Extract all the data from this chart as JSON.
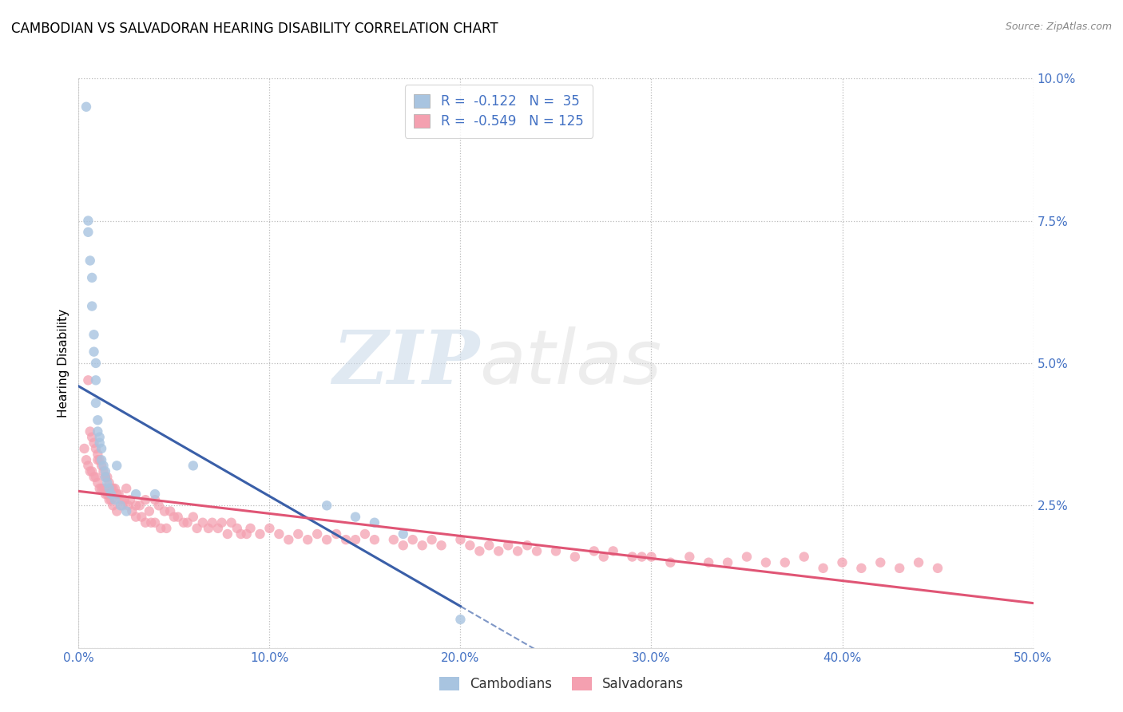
{
  "title": "CAMBODIAN VS SALVADORAN HEARING DISABILITY CORRELATION CHART",
  "source": "Source: ZipAtlas.com",
  "ylabel": "Hearing Disability",
  "xlabel": "",
  "xlim": [
    0.0,
    0.5
  ],
  "ylim": [
    0.0,
    0.1
  ],
  "xticks": [
    0.0,
    0.1,
    0.2,
    0.3,
    0.4,
    0.5
  ],
  "yticks": [
    0.0,
    0.025,
    0.05,
    0.075,
    0.1
  ],
  "xtick_labels": [
    "0.0%",
    "10.0%",
    "20.0%",
    "30.0%",
    "40.0%",
    "50.0%"
  ],
  "ytick_labels": [
    "",
    "2.5%",
    "5.0%",
    "7.5%",
    "10.0%"
  ],
  "cambodian_color": "#a8c4e0",
  "salvadoran_color": "#f4a0b0",
  "cambodian_line_color": "#3a5fa8",
  "salvadoran_line_color": "#e05575",
  "cambodian_R": "-0.122",
  "cambodian_N": "35",
  "salvadoran_R": "-0.549",
  "salvadoran_N": "125",
  "watermark_zip": "ZIP",
  "watermark_atlas": "atlas",
  "background_color": "#ffffff",
  "grid_color": "#bbbbbb",
  "legend_text_color": "#4472c4",
  "cambodian_x": [
    0.004,
    0.005,
    0.005,
    0.006,
    0.007,
    0.007,
    0.008,
    0.008,
    0.009,
    0.009,
    0.009,
    0.01,
    0.01,
    0.011,
    0.011,
    0.012,
    0.012,
    0.013,
    0.014,
    0.014,
    0.015,
    0.016,
    0.017,
    0.019,
    0.02,
    0.022,
    0.025,
    0.03,
    0.04,
    0.06,
    0.13,
    0.145,
    0.155,
    0.17,
    0.2
  ],
  "cambodian_y": [
    0.095,
    0.075,
    0.073,
    0.068,
    0.065,
    0.06,
    0.055,
    0.052,
    0.05,
    0.047,
    0.043,
    0.04,
    0.038,
    0.037,
    0.036,
    0.035,
    0.033,
    0.032,
    0.031,
    0.03,
    0.029,
    0.028,
    0.027,
    0.026,
    0.032,
    0.025,
    0.024,
    0.027,
    0.027,
    0.032,
    0.025,
    0.023,
    0.022,
    0.02,
    0.005
  ],
  "salvadoran_x": [
    0.003,
    0.004,
    0.005,
    0.005,
    0.006,
    0.006,
    0.007,
    0.007,
    0.008,
    0.008,
    0.009,
    0.009,
    0.01,
    0.01,
    0.01,
    0.011,
    0.011,
    0.012,
    0.012,
    0.013,
    0.013,
    0.014,
    0.014,
    0.015,
    0.015,
    0.016,
    0.016,
    0.017,
    0.017,
    0.018,
    0.018,
    0.019,
    0.02,
    0.02,
    0.021,
    0.022,
    0.023,
    0.024,
    0.025,
    0.026,
    0.027,
    0.028,
    0.03,
    0.03,
    0.032,
    0.033,
    0.035,
    0.035,
    0.037,
    0.038,
    0.04,
    0.04,
    0.042,
    0.043,
    0.045,
    0.046,
    0.048,
    0.05,
    0.052,
    0.055,
    0.057,
    0.06,
    0.062,
    0.065,
    0.068,
    0.07,
    0.073,
    0.075,
    0.078,
    0.08,
    0.083,
    0.085,
    0.088,
    0.09,
    0.095,
    0.1,
    0.105,
    0.11,
    0.115,
    0.12,
    0.125,
    0.13,
    0.135,
    0.14,
    0.145,
    0.15,
    0.155,
    0.165,
    0.17,
    0.175,
    0.18,
    0.185,
    0.19,
    0.2,
    0.205,
    0.21,
    0.215,
    0.22,
    0.225,
    0.23,
    0.235,
    0.24,
    0.25,
    0.26,
    0.27,
    0.275,
    0.28,
    0.29,
    0.295,
    0.3,
    0.31,
    0.32,
    0.33,
    0.34,
    0.35,
    0.36,
    0.37,
    0.38,
    0.39,
    0.4,
    0.41,
    0.42,
    0.43,
    0.44,
    0.45
  ],
  "salvadoran_y": [
    0.035,
    0.033,
    0.047,
    0.032,
    0.038,
    0.031,
    0.037,
    0.031,
    0.036,
    0.03,
    0.035,
    0.03,
    0.034,
    0.033,
    0.029,
    0.033,
    0.028,
    0.032,
    0.028,
    0.031,
    0.028,
    0.03,
    0.027,
    0.03,
    0.027,
    0.029,
    0.026,
    0.028,
    0.026,
    0.028,
    0.025,
    0.028,
    0.027,
    0.024,
    0.027,
    0.026,
    0.025,
    0.026,
    0.028,
    0.025,
    0.026,
    0.024,
    0.025,
    0.023,
    0.025,
    0.023,
    0.026,
    0.022,
    0.024,
    0.022,
    0.026,
    0.022,
    0.025,
    0.021,
    0.024,
    0.021,
    0.024,
    0.023,
    0.023,
    0.022,
    0.022,
    0.023,
    0.021,
    0.022,
    0.021,
    0.022,
    0.021,
    0.022,
    0.02,
    0.022,
    0.021,
    0.02,
    0.02,
    0.021,
    0.02,
    0.021,
    0.02,
    0.019,
    0.02,
    0.019,
    0.02,
    0.019,
    0.02,
    0.019,
    0.019,
    0.02,
    0.019,
    0.019,
    0.018,
    0.019,
    0.018,
    0.019,
    0.018,
    0.019,
    0.018,
    0.017,
    0.018,
    0.017,
    0.018,
    0.017,
    0.018,
    0.017,
    0.017,
    0.016,
    0.017,
    0.016,
    0.017,
    0.016,
    0.016,
    0.016,
    0.015,
    0.016,
    0.015,
    0.015,
    0.016,
    0.015,
    0.015,
    0.016,
    0.014,
    0.015,
    0.014,
    0.015,
    0.014,
    0.015,
    0.014
  ]
}
